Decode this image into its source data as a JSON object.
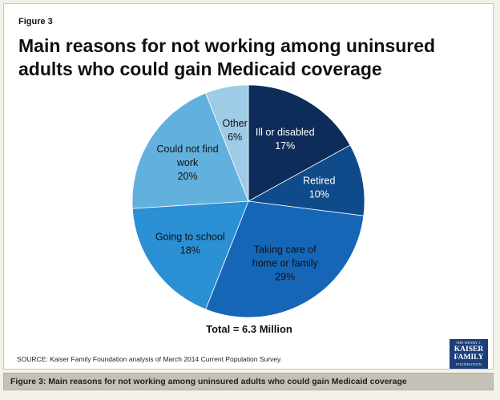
{
  "figure_label": "Figure 3",
  "caption": "Figure 3: Main reasons for not working among uninsured adults who could gain Medicaid coverage",
  "source": "SOURCE: Kaiser Family Foundation analysis of March 2014 Current Population Survey.",
  "logo": {
    "line1": "THE HENRY J.",
    "line2": "KAISER",
    "line3": "FAMILY",
    "line4": "FOUNDATION"
  },
  "chart_data": {
    "type": "pie",
    "title": "Main reasons for not working among uninsured adults who could gain Medicaid  coverage",
    "total_label": "Total = 6.3 Million",
    "slices": [
      {
        "name": "Ill or disabled",
        "label_lines": [
          "Ill or disabled"
        ],
        "value": 17,
        "value_label": "17%",
        "color": "#0e2c59",
        "text_color": "#ffffff"
      },
      {
        "name": "Retired",
        "label_lines": [
          "Retired"
        ],
        "value": 10,
        "value_label": "10%",
        "color": "#0f4b8a",
        "text_color": "#ffffff"
      },
      {
        "name": "Taking care of home or family",
        "label_lines": [
          "Taking care of",
          "home or family"
        ],
        "value": 29,
        "value_label": "29%",
        "color": "#1666b8",
        "text_color": "#111111"
      },
      {
        "name": "Going to school",
        "label_lines": [
          "Going to school"
        ],
        "value": 18,
        "value_label": "18%",
        "color": "#2b8fd4",
        "text_color": "#111111"
      },
      {
        "name": "Could not find work",
        "label_lines": [
          "Could not find",
          "work"
        ],
        "value": 20,
        "value_label": "20%",
        "color": "#62b0dd",
        "text_color": "#111111"
      },
      {
        "name": "Other",
        "label_lines": [
          "Other"
        ],
        "value": 6,
        "value_label": "6%",
        "color": "#9ecbe5",
        "text_color": "#111111"
      }
    ]
  }
}
